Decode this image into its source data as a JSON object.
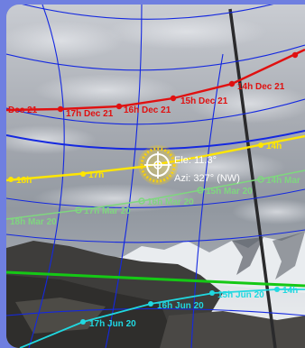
{
  "colors": {
    "dec_path": "#e01010",
    "current_path": "#ffe600",
    "mar_path": "#7fd67f",
    "jun_path": "#20d8e0",
    "horizon": "#15c815",
    "grid": "#1428e0",
    "sun": "#ffd400",
    "frame": "#6f7fe0"
  },
  "sun_marker": {
    "icon": "sun-crosshair-icon",
    "elevation_label": "Ele: 11.3°",
    "azimuth_label": "Azi: 327° (NW)"
  },
  "paths": {
    "dec": {
      "labels": [
        "Dec 21",
        "17h Dec 21",
        "16h Dec 21",
        "15h Dec 21",
        "14h Dec 21"
      ]
    },
    "current": {
      "labels": [
        "18h",
        "17h",
        "14h"
      ]
    },
    "mar": {
      "labels": [
        "18h Mar 20",
        "17h Mar 20",
        "16h Mar 20",
        "15h Mar 20",
        "14h Mar"
      ]
    },
    "jun": {
      "labels": [
        "17h Jun 20",
        "16h Jun 20",
        "15h Jun 20",
        "14h"
      ]
    }
  }
}
